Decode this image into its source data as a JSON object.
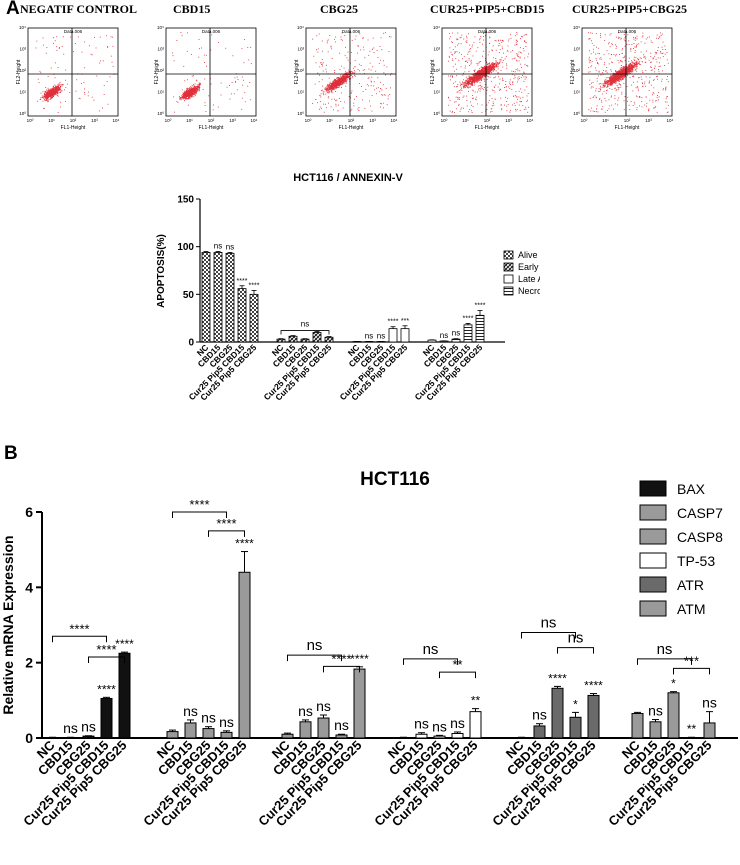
{
  "panel_a": {
    "letter": "A",
    "flow_plots": [
      {
        "title": "NEGATIF CONTROL",
        "gate": "Data.006",
        "xlabel": "FL1-Height",
        "ylabel": "FL2-Height",
        "density": "low"
      },
      {
        "title": "CBD15",
        "gate": "Data.006",
        "xlabel": "FL1-Height",
        "ylabel": "FL2-Height",
        "density": "low"
      },
      {
        "title": "CBG25",
        "gate": "Data.006",
        "xlabel": "FL1-Height",
        "ylabel": "FL2-Height",
        "density": "medium"
      },
      {
        "title": "CUR25+PIP5+CBD15",
        "gate": "Data.006",
        "xlabel": "FL1-Height",
        "ylabel": "FL2-Height",
        "density": "high"
      },
      {
        "title": "CUR25+PIP5+CBG25",
        "gate": "Data.006",
        "xlabel": "FL1-Height",
        "ylabel": "FL2-Height",
        "density": "high"
      }
    ]
  },
  "panel_b": {
    "letter": "B"
  },
  "colors": {
    "scatter": "#e0303a",
    "bar_dark": "#111111",
    "bar_gray": "#9a9a9a",
    "bar_dark_gray": "#6a6a6a"
  },
  "chart_data": [
    {
      "type": "bar",
      "title": "HCT116 / ANNEXIN-V",
      "ylabel": "APOPTOSIS(%)",
      "xlabel": "",
      "ylim": [
        0,
        150
      ],
      "yticks": [
        0,
        50,
        100,
        150
      ],
      "categories": [
        "NC",
        "CBD15",
        "CBG25",
        "Cur25 Pip5 CBD15",
        "Cur25 Pip5 CBG25"
      ],
      "legend": [
        "Alive",
        "Early Apoptosis",
        "Late Apoptosis",
        "Necrosis"
      ],
      "legend_position": "right",
      "series": [
        {
          "name": "Alive",
          "values": [
            94,
            94,
            93,
            56,
            50
          ],
          "errors": [
            1,
            1,
            1,
            3,
            4
          ],
          "sig": [
            "",
            "ns",
            "ns",
            "****",
            "****"
          ]
        },
        {
          "name": "Early Apoptosis",
          "values": [
            3,
            6,
            3,
            10,
            5
          ],
          "errors": [
            0.5,
            0.7,
            0.5,
            1,
            0.7
          ],
          "sig": [
            "",
            "",
            "",
            "",
            ""
          ]
        },
        {
          "name": "Late Apoptosis",
          "values": [
            0.5,
            0.5,
            0.5,
            14,
            14
          ],
          "errors": [
            0.1,
            0.1,
            0.1,
            2,
            3
          ],
          "sig": [
            "",
            "ns",
            "ns",
            "****",
            "***"
          ]
        },
        {
          "name": "Necrosis",
          "values": [
            2,
            1,
            3,
            18,
            28
          ],
          "errors": [
            0.3,
            0.2,
            0.5,
            1.5,
            5
          ],
          "sig": [
            "",
            "ns",
            "ns",
            "****",
            "****"
          ]
        }
      ],
      "brackets": [
        {
          "series": "Early Apoptosis",
          "from": "NC",
          "to": "Cur25 Pip5 CBG25",
          "label": "ns"
        }
      ]
    },
    {
      "type": "bar",
      "title": "HCT116",
      "ylabel": "Relative  mRNA  Expression",
      "xlabel": "",
      "ylim": [
        0,
        6
      ],
      "yticks": [
        0,
        2,
        4,
        6
      ],
      "categories": [
        "NC",
        "CBD15",
        "CBG25",
        "Cur25 Pip5 CBD15",
        "Cur25 Pip5 CBG25"
      ],
      "legend": [
        "BAX",
        "CASP7",
        "CASP8",
        "TP-53",
        "ATR",
        "ATM"
      ],
      "legend_position": "top-right",
      "series": [
        {
          "name": "BAX",
          "values": [
            0.01,
            0.01,
            0.05,
            1.05,
            2.25
          ],
          "errors": [
            0.01,
            0.01,
            0.01,
            0.03,
            0.03
          ],
          "sig": [
            "",
            "ns",
            "ns",
            "****",
            "****"
          ]
        },
        {
          "name": "CASP7",
          "values": [
            0.17,
            0.4,
            0.25,
            0.15,
            4.4
          ],
          "errors": [
            0.04,
            0.08,
            0.05,
            0.04,
            0.55
          ],
          "sig": [
            "",
            "ns",
            "ns",
            "ns",
            "****"
          ]
        },
        {
          "name": "CASP8",
          "values": [
            0.1,
            0.43,
            0.53,
            0.08,
            1.83
          ],
          "errors": [
            0.03,
            0.05,
            0.08,
            0.02,
            0.06
          ],
          "sig": [
            "",
            "ns",
            "ns",
            "ns",
            "****"
          ]
        },
        {
          "name": "TP-53",
          "values": [
            0.01,
            0.1,
            0.05,
            0.12,
            0.7
          ],
          "errors": [
            0.01,
            0.04,
            0.02,
            0.04,
            0.08
          ],
          "sig": [
            "",
            "ns",
            "ns",
            "ns",
            "**"
          ]
        },
        {
          "name": "ATR",
          "values": [
            0.01,
            0.32,
            1.32,
            0.55,
            1.13
          ],
          "errors": [
            0.01,
            0.06,
            0.05,
            0.13,
            0.05
          ],
          "sig": [
            "",
            "ns",
            "****",
            "*",
            "****"
          ]
        },
        {
          "name": "ATM",
          "values": [
            0.65,
            0.43,
            1.2,
            0.01,
            0.4
          ],
          "errors": [
            0.03,
            0.06,
            0.03,
            0.01,
            0.3
          ],
          "sig": [
            "",
            "ns",
            "*",
            "**",
            "ns"
          ]
        }
      ],
      "brackets": [
        {
          "series": "BAX",
          "from": "NC",
          "to": "Cur25 Pip5 CBD15",
          "label": "****",
          "level": 0
        },
        {
          "series": "BAX",
          "from": "CBG25",
          "to": "Cur25 Pip5 CBG25",
          "label": "****",
          "level": 1
        },
        {
          "series": "CASP7",
          "from": "NC",
          "to": "Cur25 Pip5 CBD15",
          "label": "****",
          "level": 0
        },
        {
          "series": "CASP7",
          "from": "CBG25",
          "to": "Cur25 Pip5 CBG25",
          "label": "****",
          "level": 1
        },
        {
          "series": "CASP8",
          "from": "NC",
          "to": "Cur25 Pip5 CBD15",
          "label": "ns",
          "level": 0
        },
        {
          "series": "CASP8",
          "from": "CBG25",
          "to": "Cur25 Pip5 CBG25",
          "label": "****",
          "level": 1
        },
        {
          "series": "TP-53",
          "from": "NC",
          "to": "Cur25 Pip5 CBD15",
          "label": "ns",
          "level": 0
        },
        {
          "series": "TP-53",
          "from": "CBG25",
          "to": "Cur25 Pip5 CBG25",
          "label": "**",
          "level": 1
        },
        {
          "series": "ATR",
          "from": "NC",
          "to": "Cur25 Pip5 CBD15",
          "label": "ns",
          "level": 0
        },
        {
          "series": "ATR",
          "from": "CBG25",
          "to": "Cur25 Pip5 CBG25",
          "label": "ns",
          "level": 1
        },
        {
          "series": "ATM",
          "from": "NC",
          "to": "Cur25 Pip5 CBD15",
          "label": "ns",
          "level": 0
        },
        {
          "series": "ATM",
          "from": "CBG25",
          "to": "Cur25 Pip5 CBG25",
          "label": "***",
          "level": 1
        }
      ]
    }
  ]
}
